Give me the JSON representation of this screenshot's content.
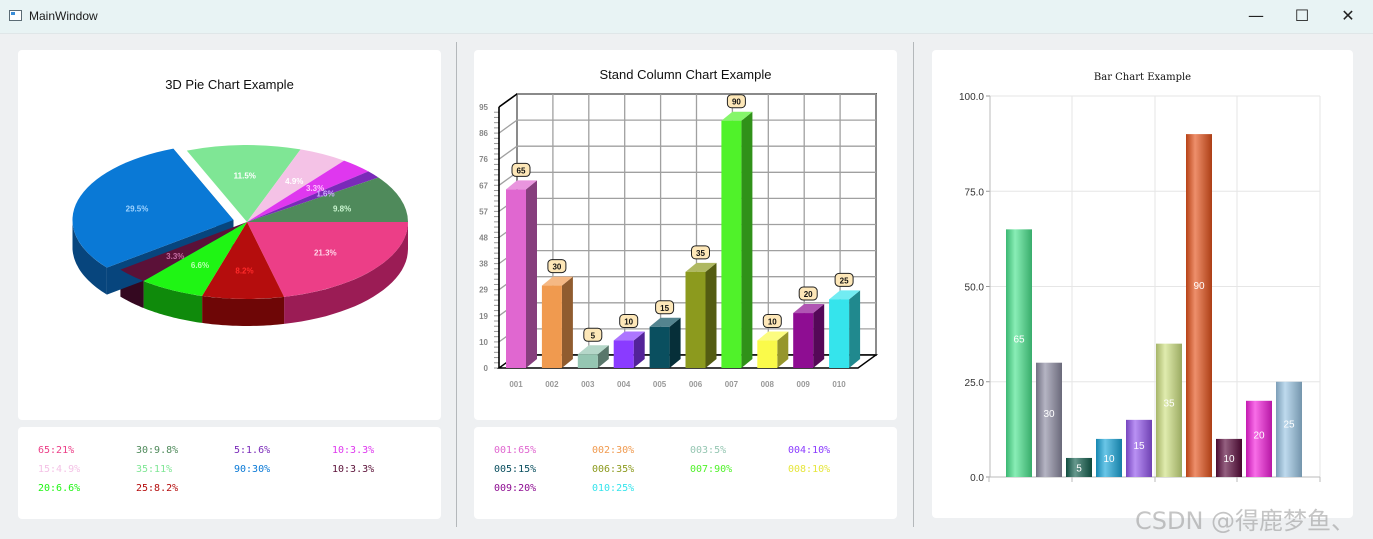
{
  "window": {
    "title": "MainWindow",
    "minimize": "—",
    "maximize": "☐",
    "close": "✕"
  },
  "pie": {
    "title": "3D Pie Chart Example",
    "slices": [
      {
        "label": "21.3%",
        "value": 21.3,
        "color": "#ec3e87",
        "side": "#9b1c55",
        "lbl": "#ffd6e8"
      },
      {
        "label": "8.2%",
        "value": 8.2,
        "color": "#b50d0d",
        "side": "#6e0606",
        "lbl": "#ff2a2a"
      },
      {
        "label": "6.6%",
        "value": 6.6,
        "color": "#1ff514",
        "side": "#0f8a0b",
        "lbl": "#b9ffb2"
      },
      {
        "label": "3.3%",
        "value": 3.3,
        "color": "#5b1138",
        "side": "#340820",
        "lbl": "#c46ca2"
      },
      {
        "label": "29.5%",
        "value": 29.5,
        "color": "#0a79d6",
        "side": "#07457d",
        "lbl": "#9fd3ff",
        "explode": true
      },
      {
        "label": "11.5%",
        "value": 11.5,
        "color": "#7fe695",
        "side": "#467f52",
        "lbl": "#ffffff"
      },
      {
        "label": "4.9%",
        "value": 4.9,
        "color": "#f4c2e6",
        "side": "#b58ba9",
        "lbl": "#ffffff"
      },
      {
        "label": "3.3%",
        "value": 3.3,
        "color": "#df37ef",
        "side": "#8a1c95",
        "lbl": "#ffc3ff"
      },
      {
        "label": "1.6%",
        "value": 1.6,
        "color": "#7a2ab9",
        "side": "#45166a",
        "lbl": "#cdb1ff"
      },
      {
        "label": "9.8%",
        "value": 9.8,
        "color": "#4f8a5b",
        "side": "#2e5236",
        "lbl": "#c9f5cf"
      }
    ],
    "legend": [
      {
        "text": "65:21%",
        "color": "#ec3e87"
      },
      {
        "text": "30:9.8%",
        "color": "#4f8a5b"
      },
      {
        "text": "5:1.6%",
        "color": "#7a2ab9"
      },
      {
        "text": "10:3.3%",
        "color": "#df37ef"
      },
      {
        "text": "15:4.9%",
        "color": "#f4c2e6"
      },
      {
        "text": "35:11%",
        "color": "#7fe695"
      },
      {
        "text": "90:30%",
        "color": "#0a79d6"
      },
      {
        "text": "10:3.3%",
        "color": "#5b1138"
      },
      {
        "text": "20:6.6%",
        "color": "#1ff514"
      },
      {
        "text": "25:8.2%",
        "color": "#b50d0d"
      }
    ]
  },
  "column": {
    "title": "Stand Column Chart Example",
    "yticks": [
      "0",
      "10",
      "19",
      "29",
      "38",
      "48",
      "57",
      "67",
      "76",
      "86",
      "95"
    ],
    "ymax": 95,
    "categories": [
      "001",
      "002",
      "003",
      "004",
      "005",
      "006",
      "007",
      "008",
      "009",
      "010"
    ],
    "values": [
      65,
      30,
      5,
      10,
      15,
      35,
      90,
      10,
      20,
      25
    ],
    "colors": [
      "#e067d0",
      "#f09a4f",
      "#95c6b2",
      "#8a3bff",
      "#0a4f5f",
      "#8c9a1e",
      "#50f22a",
      "#fafa4a",
      "#8e0d92",
      "#35e4ec"
    ],
    "legend": [
      {
        "text": "001:65%",
        "color": "#e067d0"
      },
      {
        "text": "002:30%",
        "color": "#f09a4f"
      },
      {
        "text": "003:5%",
        "color": "#95c6b2"
      },
      {
        "text": "004:10%",
        "color": "#8a3bff"
      },
      {
        "text": "005:15%",
        "color": "#0a4f5f"
      },
      {
        "text": "006:35%",
        "color": "#8c9a1e"
      },
      {
        "text": "007:90%",
        "color": "#50f22a"
      },
      {
        "text": "008:10%",
        "color": "#e6e63c"
      },
      {
        "text": "009:20%",
        "color": "#8e0d92"
      },
      {
        "text": "010:25%",
        "color": "#35e4ec"
      }
    ]
  },
  "bar": {
    "title": "Bar Chart Example",
    "yticks": [
      "0.0",
      "25.0",
      "50.0",
      "75.0",
      "100.0"
    ],
    "ymax": 100,
    "values": [
      65,
      30,
      5,
      10,
      15,
      35,
      90,
      10,
      20,
      25
    ],
    "colors": [
      "#4ae58f",
      "#8d8ca2",
      "#14604f",
      "#1aa8dc",
      "#9456ee",
      "#cfe283",
      "#e5531c",
      "#5a0b3c",
      "#f41fdc",
      "#9bc6e5"
    ],
    "labels": [
      "65",
      "30",
      "5",
      "10",
      "15",
      "35",
      "90",
      "10",
      "20",
      "25"
    ]
  },
  "chart_data": [
    {
      "type": "pie",
      "title": "3D Pie Chart Example",
      "categories": [
        "65",
        "30",
        "5",
        "10",
        "15",
        "35",
        "90",
        "10",
        "20",
        "25"
      ],
      "values": [
        21.3,
        9.8,
        1.6,
        3.3,
        4.9,
        11.5,
        29.5,
        3.3,
        6.6,
        8.2
      ]
    },
    {
      "type": "bar",
      "title": "Stand Column Chart Example",
      "categories": [
        "001",
        "002",
        "003",
        "004",
        "005",
        "006",
        "007",
        "008",
        "009",
        "010"
      ],
      "values": [
        65,
        30,
        5,
        10,
        15,
        35,
        90,
        10,
        20,
        25
      ],
      "ylim": [
        0,
        95
      ]
    },
    {
      "type": "bar",
      "title": "Bar Chart Example",
      "values": [
        65,
        30,
        5,
        10,
        15,
        35,
        90,
        10,
        20,
        25
      ],
      "ylim": [
        0,
        100
      ]
    }
  ],
  "watermark": "CSDN @得鹿梦鱼、"
}
